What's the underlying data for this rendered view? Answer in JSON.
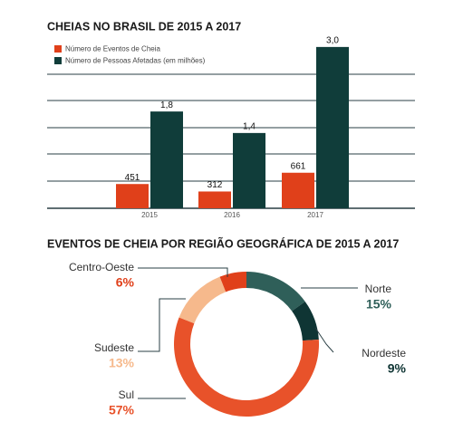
{
  "chart_data": [
    {
      "type": "bar",
      "title": "CHEIAS NO BRASIL DE 2015 A 2017",
      "categories": [
        "2015",
        "2016",
        "2017"
      ],
      "series": [
        {
          "name": "Número de Eventos de Cheia",
          "color": "#e0401a",
          "values": [
            451,
            312,
            661
          ]
        },
        {
          "name": "Número de Pessoas Afetadas (em milhões)",
          "color": "#103d3a",
          "values": [
            1.8,
            1.4,
            3.0
          ],
          "value_labels": [
            "1,8",
            "1,4",
            "3,0"
          ],
          "axis": "y2"
        }
      ],
      "ylim": [
        0,
        3200
      ],
      "y2lim": [
        0,
        3.2
      ]
    },
    {
      "type": "donut",
      "title": "EVENTOS DE CHEIA POR REGIÃO GEOGRÁFICA DE 2015 A 2017",
      "categories": [
        "Norte",
        "Nordeste",
        "Sul",
        "Sudeste",
        "Centro-Oeste"
      ],
      "values": [
        15,
        9,
        57,
        13,
        6
      ],
      "value_labels": [
        "15%",
        "9%",
        "57%",
        "13%",
        "6%"
      ],
      "colors": [
        "#2f5f59",
        "#0f3534",
        "#e8522a",
        "#f6b98c",
        "#e0401a"
      ]
    }
  ]
}
